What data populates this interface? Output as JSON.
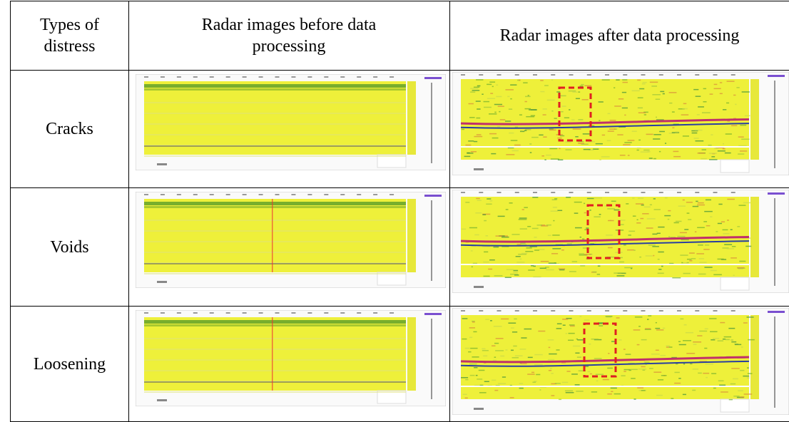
{
  "table": {
    "header": [
      "Types of distress",
      "Radar images before data processing",
      "Radar images after data processing"
    ],
    "rows": [
      [
        "Cracks"
      ],
      [
        "Voids"
      ],
      [
        "Loosening"
      ]
    ]
  }
}
